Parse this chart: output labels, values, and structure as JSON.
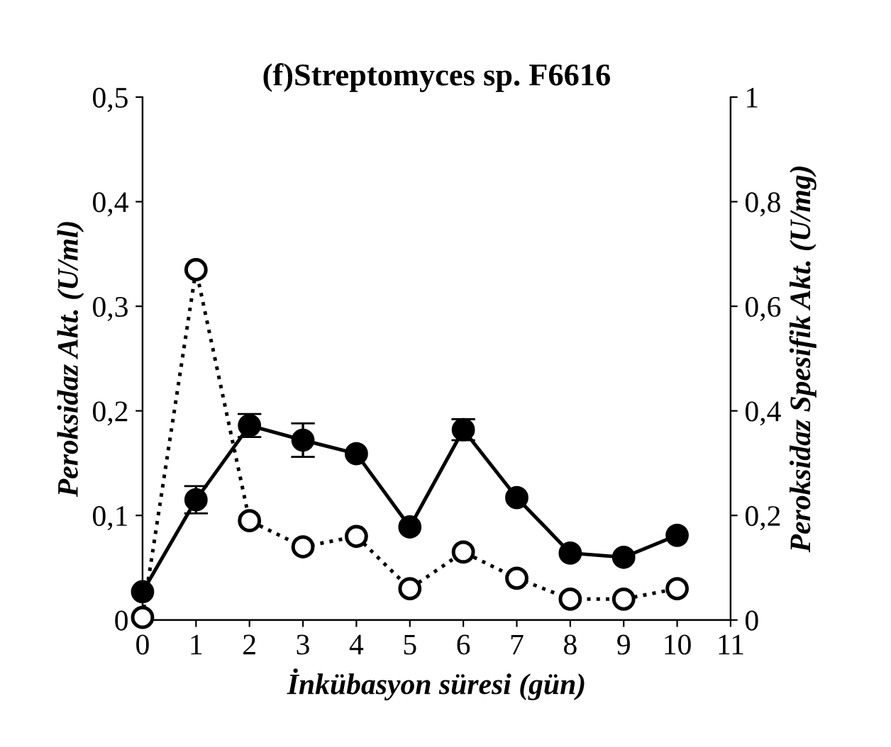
{
  "chart_data": {
    "type": "line",
    "title": "(f)Streptomyces sp. F6616",
    "xlabel": "İnkübasyon süresi (gün)",
    "ylabel": "Peroksidaz Akt. (U/ml)",
    "y2label": "Peroksidaz Spesifik Akt. (U/mg)",
    "x": [
      0,
      1,
      2,
      3,
      4,
      5,
      6,
      7,
      8,
      9,
      10
    ],
    "series": [
      {
        "color": "#000000",
        "marker": "circle",
        "line_style": "solid",
        "values": [
          0.027,
          0.115,
          0.186,
          0.172,
          0.159,
          0.089,
          0.182,
          0.117,
          0.064,
          0.06,
          0.081
        ],
        "errors": [
          null,
          0.013,
          0.011,
          0.016,
          null,
          null,
          0.01,
          null,
          null,
          null,
          null
        ]
      },
      {
        "color": "#000000",
        "marker": "circle",
        "line_style": "dotted",
        "axis": "y2",
        "values": [
          0.005,
          0.67,
          0.19,
          0.14,
          0.16,
          0.06,
          0.13,
          0.08,
          0.04,
          0.04,
          0.06
        ]
      }
    ],
    "xlim": [
      0,
      11
    ],
    "xticks": [
      0,
      1,
      2,
      3,
      4,
      5,
      6,
      7,
      8,
      9,
      10,
      11
    ],
    "ylim": [
      0,
      0.5
    ],
    "yticks": [
      0,
      {
        "value": 0.1,
        "label": "0,1"
      },
      {
        "value": 0.2,
        "label": "0,2"
      },
      {
        "value": 0.3,
        "label": "0,3"
      },
      {
        "value": 0.4,
        "label": "0,4"
      },
      {
        "value": 0.5,
        "label": "0,5"
      }
    ],
    "y2lim": [
      0,
      1
    ],
    "y2ticks": [
      0,
      {
        "value": 0.2,
        "label": "0,2"
      },
      {
        "value": 0.4,
        "label": "0,4"
      },
      {
        "value": 0.6,
        "label": "0,6"
      },
      {
        "value": 0.8,
        "label": "0,8"
      },
      1
    ],
    "grid": false,
    "legend": false
  }
}
